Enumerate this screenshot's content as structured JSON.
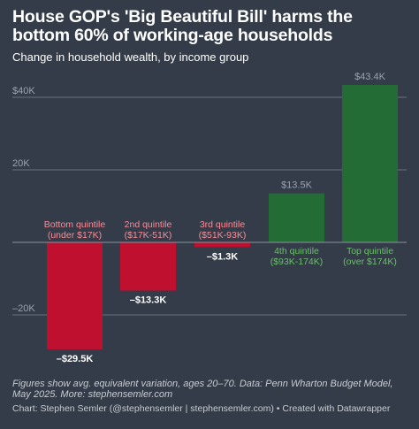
{
  "header": {
    "title": "House GOP's 'Big Beautiful Bill' harms the bottom 60% of working-age households",
    "subtitle": "Change in household wealth, by income group"
  },
  "chart_data": {
    "type": "bar",
    "categories": [
      [
        "Bottom quintile",
        "(under $17K)"
      ],
      [
        "2nd quintile",
        "($17K-51K)"
      ],
      [
        "3rd quintile",
        "($51K-93K)"
      ],
      [
        "4th quintile",
        "($93K-174K)"
      ],
      [
        "Top quintile",
        "(over $174K)"
      ]
    ],
    "values": [
      -29.5,
      -13.3,
      -1.3,
      13.5,
      43.4
    ],
    "value_labels": [
      "–$29.5K",
      "–$13.3K",
      "–$1.3K",
      "$13.5K",
      "$43.4K"
    ],
    "yticks": [
      {
        "value": 40,
        "label": "$40K"
      },
      {
        "value": 20,
        "label": "20K"
      },
      {
        "value": -20,
        "label": "–20K"
      }
    ],
    "ylim": [
      -32,
      46
    ],
    "grid": true,
    "colors": {
      "negative": "#c0102f",
      "positive": "#246c36",
      "negative_label": "#ff8a96",
      "positive_label": "#6cbf6c",
      "positive_value": "#9aa3ad",
      "grid": "#6a7380",
      "tick": "#9aa3ad"
    }
  },
  "footer": {
    "note": "Figures show avg. equivalent variation, ages 20–70. Data: Penn Wharton Budget Model, May 2025. More: stephensemler.com",
    "credit": "Chart: Stephen Semler (@stephensemler | stephensemler.com) • Created with Datawrapper"
  }
}
